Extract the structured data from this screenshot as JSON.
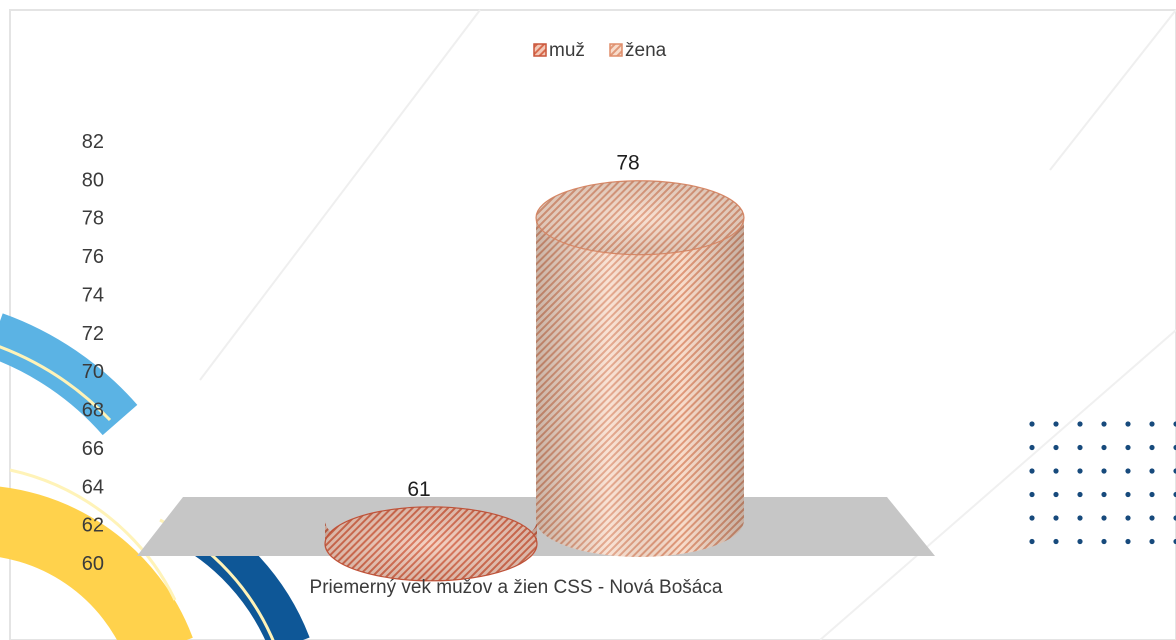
{
  "colors": {
    "accent_blue": "#5BB3E4",
    "accent_navy": "#0E5797",
    "accent_yellow": "#FFD24C",
    "dots": "#174A7C",
    "floor": "#C6C6C6",
    "muz": "#E8866A",
    "zena": "#F0B494"
  },
  "chart_data": {
    "type": "bar",
    "title": "",
    "categories": [
      "Priemerný vek mužov a žien CSS - Nová Bošáca"
    ],
    "series": [
      {
        "name": "muž",
        "values": [
          61
        ]
      },
      {
        "name": "žena",
        "values": [
          78
        ]
      }
    ],
    "data_labels": [
      "61",
      "78"
    ],
    "ylim": [
      60,
      82
    ],
    "yticks": [
      60,
      62,
      64,
      66,
      68,
      70,
      72,
      74,
      76,
      78,
      80,
      82
    ],
    "legend_position": "top",
    "grid": false,
    "xlabel": "",
    "ylabel": ""
  }
}
